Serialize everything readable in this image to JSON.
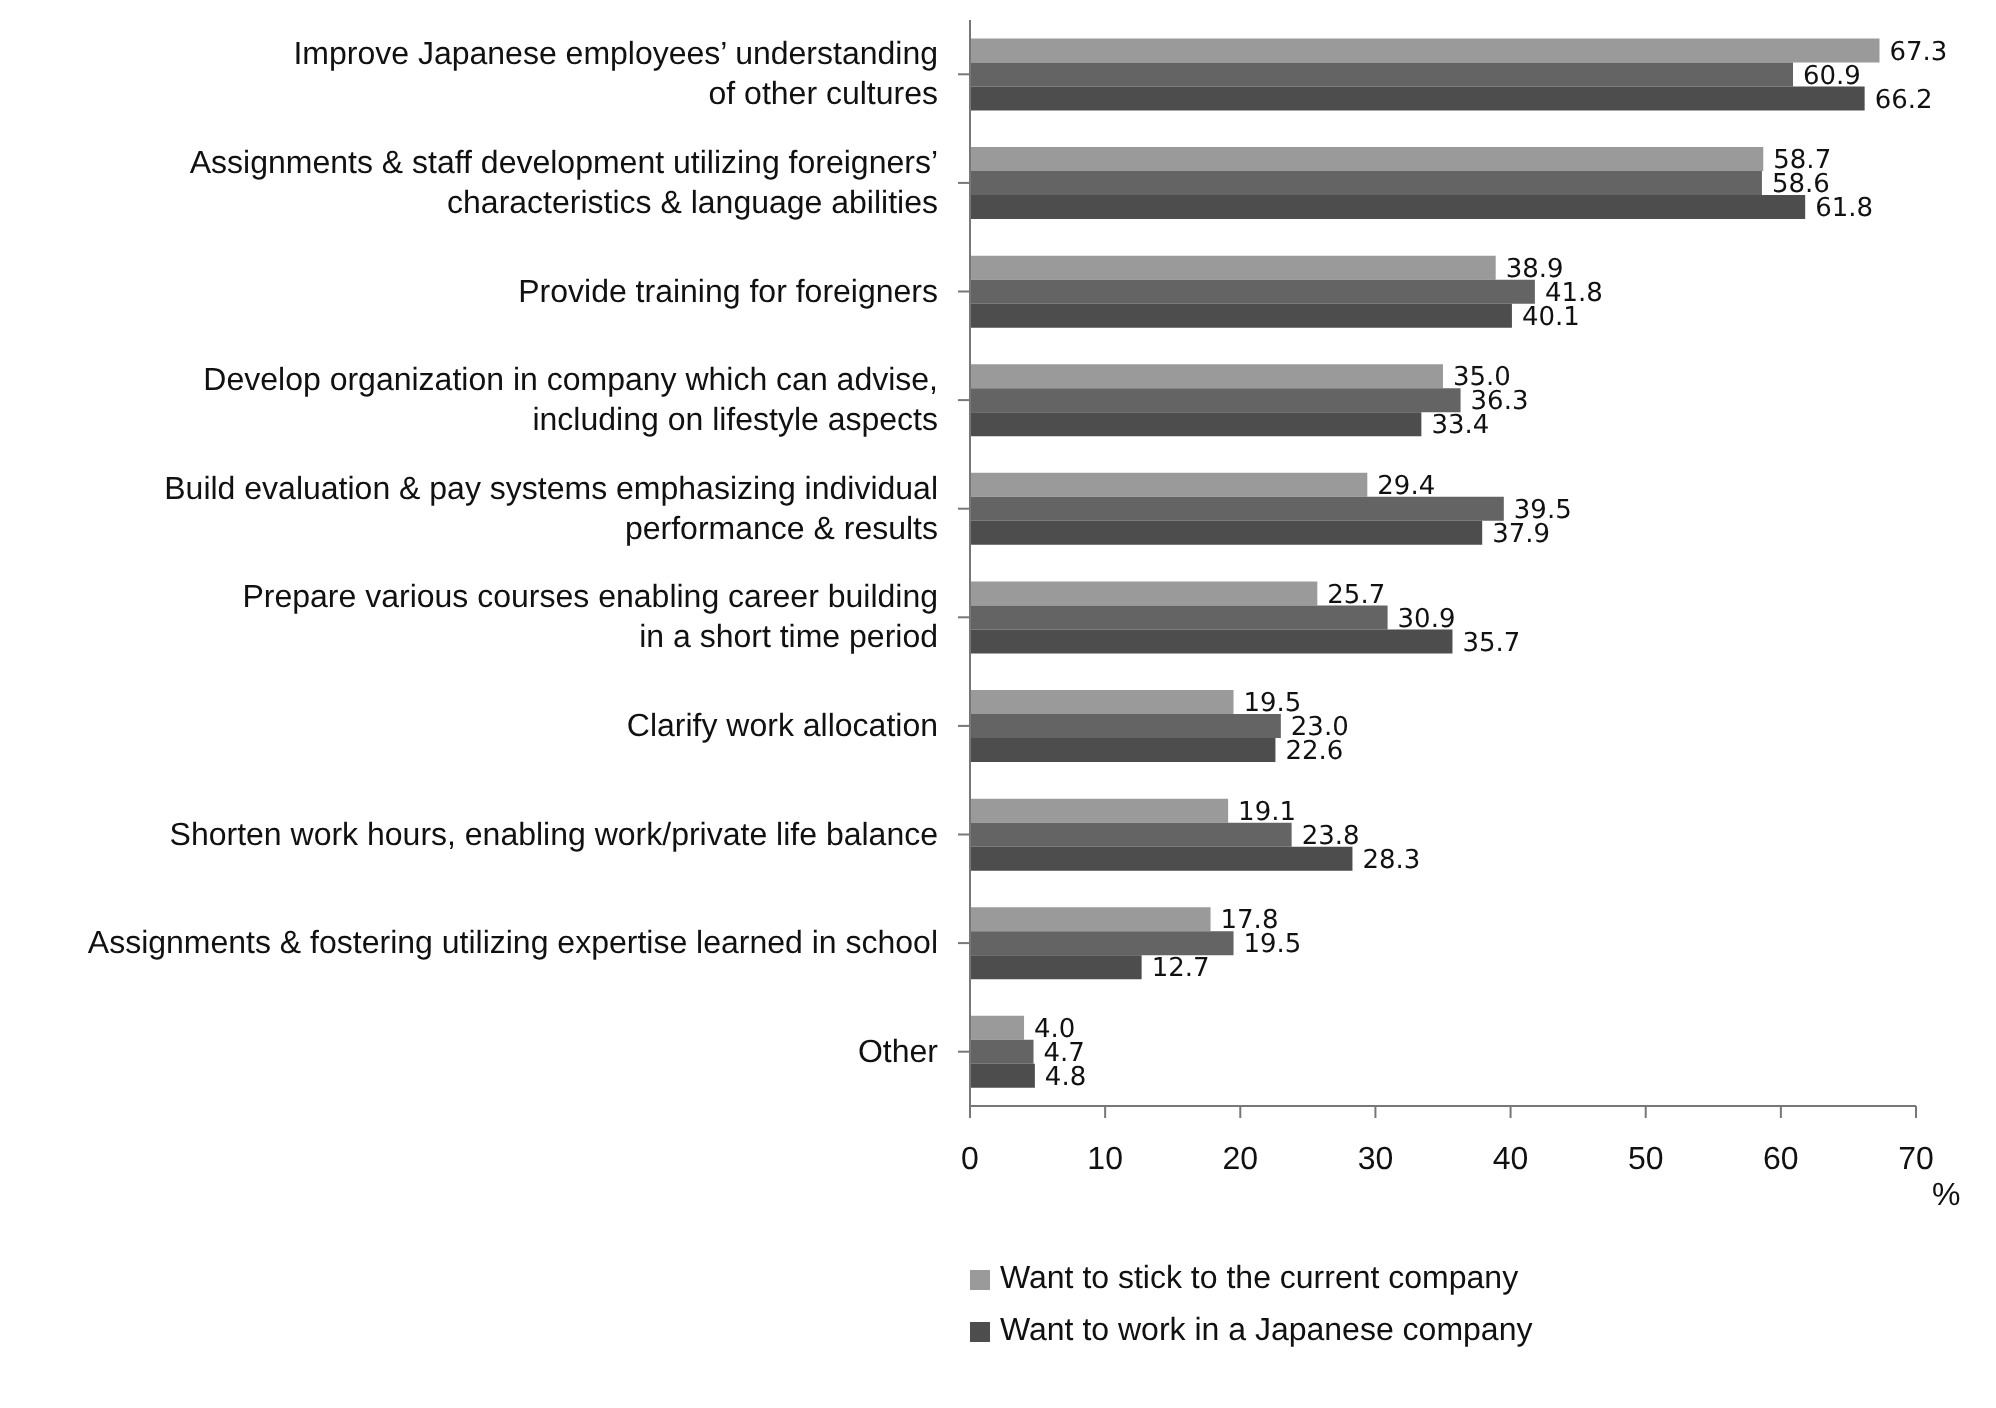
{
  "chart_data": {
    "type": "bar",
    "orientation": "horizontal",
    "xlabel": "%",
    "categories": [
      "Improve Japanese employees’ understanding\nof other cultures",
      "Assignments & staff development utilizing foreigners’\ncharacteristics & language abilities",
      "Provide training for foreigners",
      "Develop organization in company which can advise,\nincluding on lifestyle aspects",
      "Build evaluation & pay systems emphasizing individual\nperformance & results",
      "Prepare various courses enabling career building\nin a short time period",
      "Clarify work allocation",
      "Shorten work hours, enabling work/private life balance",
      "Assignments & fostering utilizing expertise learned in school",
      "Other"
    ],
    "series": [
      {
        "name": "Want to stick to the current company",
        "color": "#9a9a9a",
        "values": [
          67.3,
          58.7,
          38.9,
          35.0,
          29.4,
          25.7,
          19.5,
          19.1,
          17.8,
          4.0
        ],
        "value_labels": [
          "67.3",
          "58.7",
          "38.9",
          "35.0",
          "29.4",
          "25.7",
          "19.5",
          "19.1",
          "17.8",
          "4.0"
        ]
      },
      {
        "color": "#646464",
        "values": [
          60.9,
          58.6,
          41.8,
          36.3,
          39.5,
          30.9,
          23.0,
          23.8,
          19.5,
          4.7
        ],
        "value_labels": [
          "60.9",
          "58.6",
          "41.8",
          "36.3",
          "39.5",
          "30.9",
          "23.0",
          "23.8",
          "19.5",
          "4.7"
        ]
      },
      {
        "name": "Want to work in a Japanese company",
        "color": "#4d4d4d",
        "values": [
          66.2,
          61.8,
          40.1,
          33.4,
          37.9,
          35.7,
          22.6,
          28.3,
          12.7,
          4.8
        ],
        "value_labels": [
          "66.2",
          "61.8",
          "40.1",
          "33.4",
          "37.9",
          "35.7",
          "22.6",
          "28.3",
          "12.7",
          "4.8"
        ]
      }
    ],
    "xlim": [
      0,
      70
    ],
    "xticks": [
      0,
      10,
      20,
      30,
      40,
      50,
      60,
      70
    ],
    "grid": false,
    "legend": "bottom"
  }
}
